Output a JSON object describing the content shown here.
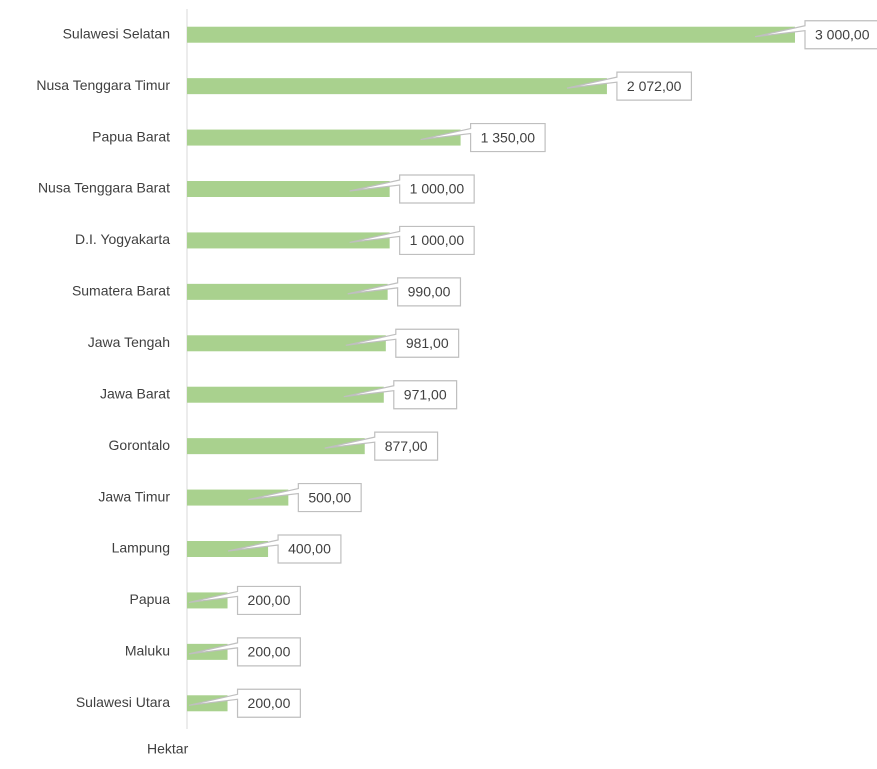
{
  "chart_data": {
    "type": "bar",
    "orientation": "horizontal",
    "categories": [
      "Sulawesi Selatan",
      "Nusa Tenggara Timur",
      "Papua Barat",
      "Nusa Tenggara Barat",
      "D.I. Yogyakarta",
      "Sumatera Barat",
      "Jawa Tengah",
      "Jawa Barat",
      "Gorontalo",
      "Jawa Timur",
      "Lampung",
      "Papua",
      "Maluku",
      "Sulawesi Utara"
    ],
    "values": [
      3000,
      2072,
      1350,
      1000,
      1000,
      990,
      981,
      971,
      877,
      500,
      400,
      200,
      200,
      200
    ],
    "value_labels": [
      "3 000,00",
      "2 072,00",
      "1 350,00",
      "1 000,00",
      "1 000,00",
      "990,00",
      "981,00",
      "971,00",
      "877,00",
      "500,00",
      "400,00",
      "200,00",
      "200,00",
      "200,00"
    ],
    "color": "#a9d18e",
    "xlabel": "Hektar",
    "xlim": [
      0,
      3000
    ]
  }
}
